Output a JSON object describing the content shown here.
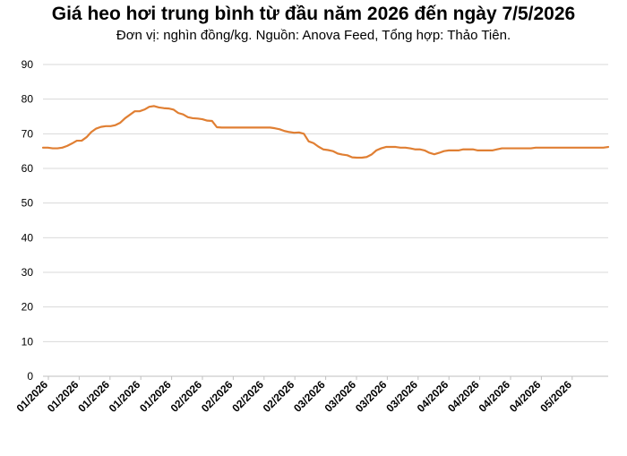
{
  "title": "Giá heo hơi trung bình từ đầu năm 2026 đến ngày 7/5/2026",
  "subtitle": "Đơn vị: nghìn đồng/kg. Nguồn: Anova Feed, Tổng hợp: Thảo Tiên.",
  "chart_data": {
    "type": "line",
    "title": "Giá heo hơi trung bình từ đầu năm 2026 đến ngày 7/5/2026",
    "subtitle": "Đơn vị: nghìn đồng/kg. Nguồn: Anova Feed, Tổng hợp: Thảo Tiên.",
    "xlabel": "",
    "ylabel": "",
    "ylim": [
      0,
      90
    ],
    "yticks": [
      0,
      10,
      20,
      30,
      40,
      50,
      60,
      70,
      80,
      90
    ],
    "grid": true,
    "legend": "none",
    "line_color": "#E07F33",
    "x_tick_labels": [
      "01/2026",
      "01/2026",
      "01/2026",
      "01/2026",
      "01/2026",
      "02/2026",
      "02/2026",
      "02/2026",
      "02/2026",
      "03/2026",
      "03/2026",
      "03/2026",
      "03/2026",
      "04/2026",
      "04/2026",
      "04/2026",
      "04/2026",
      "05/2026"
    ],
    "series": [
      {
        "name": "",
        "values": [
          66,
          66,
          65.8,
          65.8,
          66,
          66.5,
          67.2,
          68,
          68,
          69,
          70.5,
          71.5,
          72,
          72.2,
          72.2,
          72.5,
          73.2,
          74.5,
          75.5,
          76.5,
          76.5,
          77,
          77.8,
          78,
          77.6,
          77.4,
          77.3,
          77,
          76,
          75.6,
          74.8,
          74.5,
          74.4,
          74.2,
          73.8,
          73.7,
          71.9,
          71.8,
          71.8,
          71.8,
          71.8,
          71.8,
          71.8,
          71.8,
          71.8,
          71.8,
          71.8,
          71.8,
          71.6,
          71.3,
          70.8,
          70.5,
          70.3,
          70.4,
          70,
          67.8,
          67.3,
          66.3,
          65.5,
          65.3,
          65,
          64.3,
          64,
          63.8,
          63.2,
          63.1,
          63.1,
          63.3,
          64,
          65.2,
          65.8,
          66.2,
          66.2,
          66.2,
          66,
          66,
          65.8,
          65.5,
          65.5,
          65.2,
          64.5,
          64.1,
          64.5,
          65,
          65.2,
          65.2,
          65.2,
          65.5,
          65.5,
          65.5,
          65.2,
          65.2,
          65.2,
          65.2,
          65.5,
          65.8,
          65.8,
          65.8,
          65.8,
          65.8,
          65.8,
          65.8,
          66,
          66,
          66,
          66,
          66,
          66,
          66,
          66,
          66,
          66,
          66,
          66,
          66,
          66,
          66,
          66.2
        ]
      }
    ]
  }
}
